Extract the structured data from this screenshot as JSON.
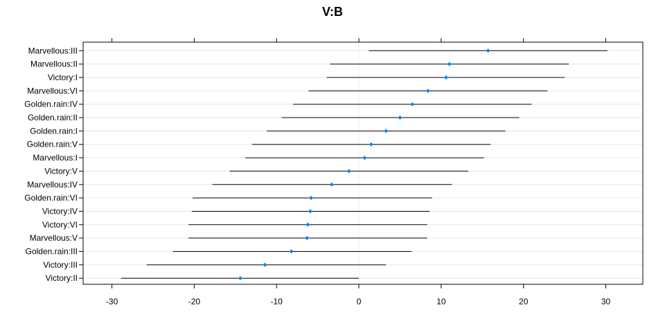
{
  "chart_data": {
    "type": "interval",
    "title": "V:B",
    "xlabel": "",
    "ylabel": "",
    "xlim": [
      -33.5,
      34.5
    ],
    "x_ticks": [
      -30,
      -20,
      -10,
      0,
      10,
      20,
      30
    ],
    "x_tick_labels": [
      "-30",
      "-20",
      "-10",
      "0",
      "10",
      "20",
      "30"
    ],
    "grid": true,
    "reference_line": 0,
    "marker_color": "#0080ff",
    "categories": [
      "Marvellous:III",
      "Marvellous:II",
      "Victory:I",
      "Marvellous:VI",
      "Golden.rain:IV",
      "Golden.rain:II",
      "Golden.rain:I",
      "Golden.rain:V",
      "Marvellous:I",
      "Victory:V",
      "Marvellous:IV",
      "Golden.rain:VI",
      "Victory:IV",
      "Victory:VI",
      "Marvellous:V",
      "Golden.rain:III",
      "Victory:III",
      "Victory:II"
    ],
    "estimates": [
      15.7,
      11.0,
      10.6,
      8.4,
      6.5,
      5.0,
      3.3,
      1.5,
      0.7,
      -1.2,
      -3.3,
      -5.8,
      -5.9,
      -6.2,
      -6.3,
      -8.2,
      -11.4,
      -14.4
    ],
    "lower": [
      1.2,
      -3.5,
      -3.9,
      -6.1,
      -8.0,
      -9.4,
      -11.2,
      -13.0,
      -13.8,
      -15.7,
      -17.8,
      -20.2,
      -20.3,
      -20.7,
      -20.7,
      -22.6,
      -25.8,
      -28.9
    ],
    "upper": [
      30.2,
      25.5,
      25.0,
      22.9,
      21.0,
      19.5,
      17.8,
      16.0,
      15.2,
      13.3,
      11.3,
      8.9,
      8.6,
      8.3,
      8.3,
      6.4,
      3.3,
      0.0
    ]
  }
}
